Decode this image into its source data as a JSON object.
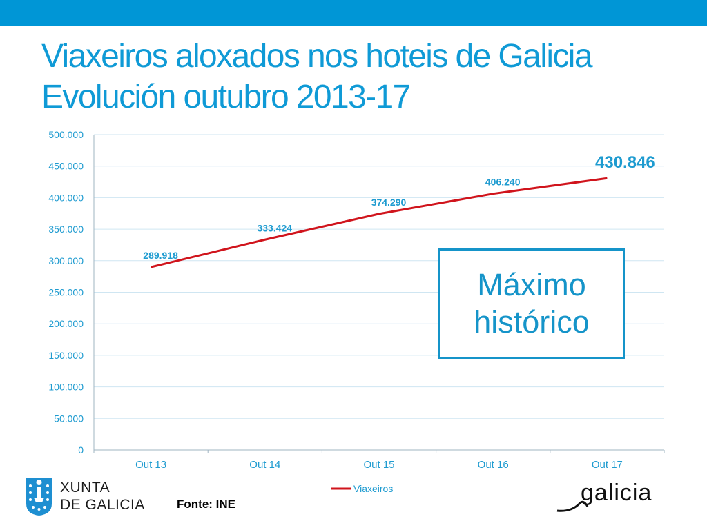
{
  "slide": {
    "title_line1": "Viaxeiros aloxados nos hoteis de Galicia",
    "title_line2": "Evolución outubro 2013-17",
    "callout_line1": "Máximo",
    "callout_line2": "histórico",
    "source": "Fonte: INE",
    "logo_left_line1": "XUNTA",
    "logo_left_line2": "DE GALICIA",
    "logo_right": "galicia",
    "colors": {
      "band": "#0096d6",
      "title": "#0f9ad6",
      "axis_text": "#1e9bd0",
      "series": "#d0141c"
    }
  },
  "chart_data": {
    "type": "line",
    "categories": [
      "Out 13",
      "Out 14",
      "Out 15",
      "Out 16",
      "Out 17"
    ],
    "series": [
      {
        "name": "Viaxeiros",
        "values": [
          289918,
          333424,
          374290,
          406240,
          430846
        ],
        "labels": [
          "289.918",
          "333.424",
          "374.290",
          "406.240",
          "430.846"
        ]
      }
    ],
    "yticks": [
      "0",
      "50.000",
      "100.000",
      "150.000",
      "200.000",
      "250.000",
      "300.000",
      "350.000",
      "400.000",
      "450.000",
      "500.000"
    ],
    "ylim": [
      0,
      500000
    ],
    "grid": true,
    "legend": "bottom",
    "title": "",
    "xlabel": "",
    "ylabel": ""
  }
}
